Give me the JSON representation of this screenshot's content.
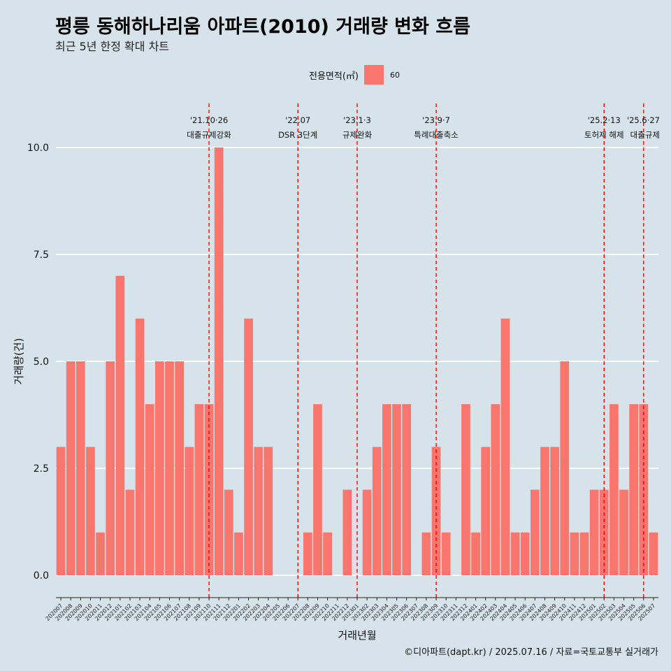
{
  "header": {
    "title": "평릉 동해하나리움 아파트(2010) 거래량 변화 흐름",
    "subtitle": "최근 5년 한정 확대 차트"
  },
  "legend": {
    "title": "전용면적(㎡)",
    "items": [
      {
        "label": "60",
        "color": "#f8766d"
      }
    ]
  },
  "caption": "©디아파트(dapt.kr) / 2025.07.16 / 자료=국토교통부 실거래가",
  "colors": {
    "background": "#d6e3ea",
    "bar": "#f8766d",
    "gridline": "#ffffff",
    "event_line": "#ff0000"
  },
  "chart_data": {
    "type": "bar",
    "xlabel": "거래년월",
    "ylabel": "거래량(건)",
    "ylim": [
      0,
      10
    ],
    "yticks": [
      0,
      2.5,
      5,
      7.5,
      10
    ],
    "ytick_labels": [
      "0.0",
      "2.5",
      "5.0",
      "7.5",
      "10.0"
    ],
    "grid": true,
    "legend_position": "top",
    "categories": [
      "202007",
      "202008",
      "202009",
      "202010",
      "202011",
      "202012",
      "202101",
      "202102",
      "202103",
      "202104",
      "202105",
      "202106",
      "202107",
      "202108",
      "202109",
      "202110",
      "202111",
      "202112",
      "202201",
      "202202",
      "202203",
      "202204",
      "202205",
      "202206",
      "202207",
      "202208",
      "202209",
      "202210",
      "202211",
      "202212",
      "202301",
      "202302",
      "202303",
      "202304",
      "202305",
      "202306",
      "202307",
      "202308",
      "202309",
      "202310",
      "202311",
      "202312",
      "202401",
      "202402",
      "202403",
      "202404",
      "202405",
      "202406",
      "202407",
      "202408",
      "202409",
      "202410",
      "202411",
      "202412",
      "202501",
      "202502",
      "202503",
      "202504",
      "202505",
      "202506",
      "202507"
    ],
    "series": [
      {
        "name": "60",
        "values": [
          3,
          5,
          5,
          3,
          1,
          5,
          7,
          2,
          6,
          4,
          5,
          5,
          5,
          3,
          4,
          4,
          10,
          2,
          1,
          6,
          3,
          3,
          0,
          0,
          0,
          1,
          4,
          1,
          0,
          2,
          0,
          2,
          3,
          4,
          4,
          4,
          0,
          1,
          3,
          1,
          0,
          4,
          1,
          3,
          4,
          6,
          1,
          1,
          2,
          3,
          3,
          5,
          1,
          1,
          2,
          2,
          4,
          2,
          4,
          4,
          1
        ]
      }
    ],
    "annotations": [
      {
        "category": "202110",
        "date": "'21.10·26",
        "label": "대출규제강화"
      },
      {
        "category": "202207",
        "date": "'22.07",
        "label": "DSR 3단계"
      },
      {
        "category": "202301",
        "date": "'23.1·3",
        "label": "규제완화"
      },
      {
        "category": "202309",
        "date": "'23.9·7",
        "label": "특례대출축소"
      },
      {
        "category": "202502",
        "date": "'25.2·13",
        "label": "토허제 해제"
      },
      {
        "category": "202506",
        "date": "'25.6·27",
        "label": "대출규제"
      }
    ]
  }
}
